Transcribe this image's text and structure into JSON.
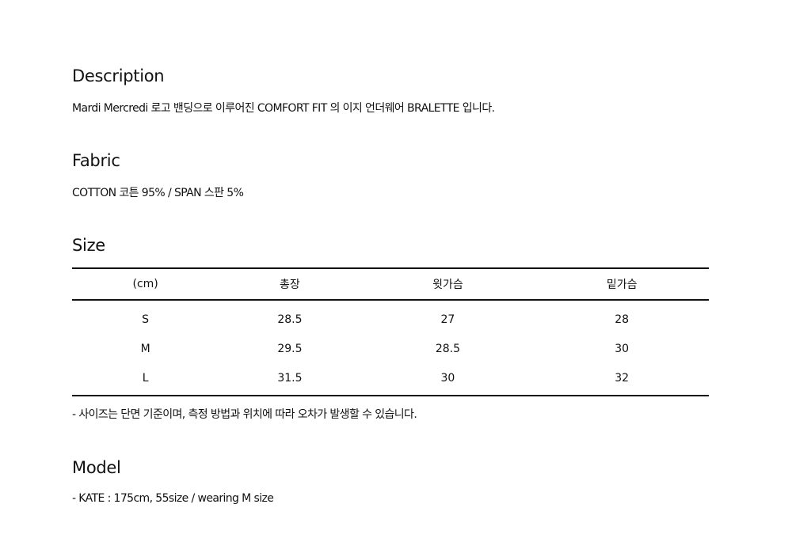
{
  "description": {
    "title": "Description",
    "text": "Mardi Mercredi 로고 밴딩으로 이루어진 COMFORT FIT 의 이지 언더웨어 BRALETTE 입니다."
  },
  "fabric": {
    "title": "Fabric",
    "text": "COTTON 코튼 95% / SPAN 스판 5%"
  },
  "size": {
    "title": "Size",
    "headers": [
      "(cm)",
      "총장",
      "윗가슴",
      "밑가슴"
    ],
    "rows": [
      [
        "S",
        "28.5",
        "27",
        "28"
      ],
      [
        "M",
        "29.5",
        "28.5",
        "30"
      ],
      [
        "L",
        "31.5",
        "30",
        "32"
      ]
    ],
    "note": "- 사이즈는 단면 기준이며, 측정 방법과 위치에 따라 오차가 발생할 수 있습니다."
  },
  "model": {
    "title": "Model",
    "text": "- KATE : 175cm, 55size / wearing M size"
  }
}
